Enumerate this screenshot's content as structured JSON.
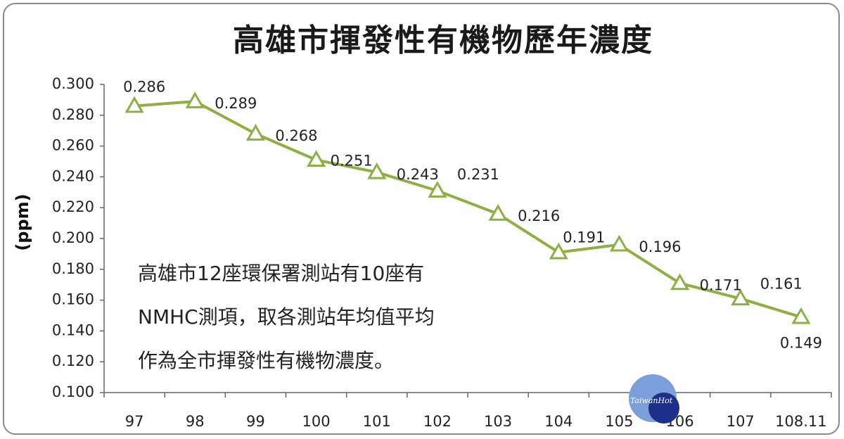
{
  "chart_data": {
    "type": "line",
    "title": "高雄市揮發性有機物歷年濃度",
    "ylabel": "(ppm)",
    "xlabel": "",
    "categories": [
      "97",
      "98",
      "99",
      "100",
      "101",
      "102",
      "103",
      "104",
      "105",
      "106",
      "107",
      "108.11"
    ],
    "series": [
      {
        "values": [
          0.286,
          0.289,
          0.268,
          0.251,
          0.243,
          0.231,
          0.216,
          0.191,
          0.196,
          0.171,
          0.161,
          0.149
        ],
        "data_labels": [
          "0.286",
          "0.289",
          "0.268",
          "0.251",
          "0.243",
          "0.231",
          "0.216",
          "0.191",
          "0.196",
          "0.171",
          "0.161",
          "0.149"
        ],
        "color": "#8db043",
        "marker": "triangle-open"
      }
    ],
    "ylim": [
      0.1,
      0.3
    ],
    "yticks": [
      "0.300",
      "0.280",
      "0.260",
      "0.240",
      "0.220",
      "0.200",
      "0.180",
      "0.160",
      "0.140",
      "0.120",
      "0.100"
    ],
    "grid": false,
    "legend": "none"
  },
  "annotation": {
    "lines": [
      "高雄市12座環保署測站有10座有",
      "NMHC測項，取各測站年均值平均",
      "作為全市揮發性有機物濃度。"
    ]
  },
  "watermark": {
    "text": "TaiwanHot",
    "colors": {
      "light": "#7b9fd8",
      "dark": "#1c2f8a"
    }
  }
}
